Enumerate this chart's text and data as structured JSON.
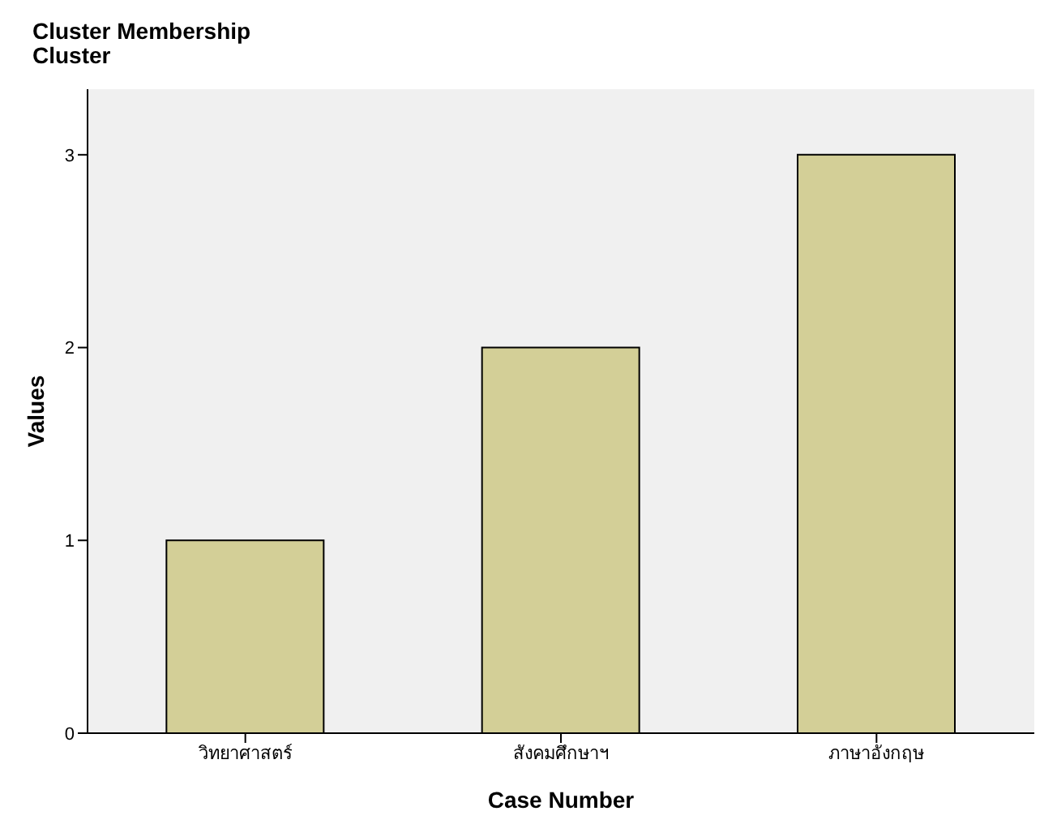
{
  "chart_data": {
    "type": "bar",
    "title": "Cluster Membership",
    "subtitle": "Cluster",
    "xlabel": "Case Number",
    "ylabel": "Values",
    "categories": [
      "วิทยาศาสตร์",
      "สังคมศึกษาฯ",
      "ภาษาอังกฤษ"
    ],
    "values": [
      1,
      2,
      3
    ],
    "color": "#d3cf97",
    "ylim": [
      0,
      3.34
    ],
    "yticks": [
      0,
      1,
      2,
      3
    ],
    "grid": false
  }
}
